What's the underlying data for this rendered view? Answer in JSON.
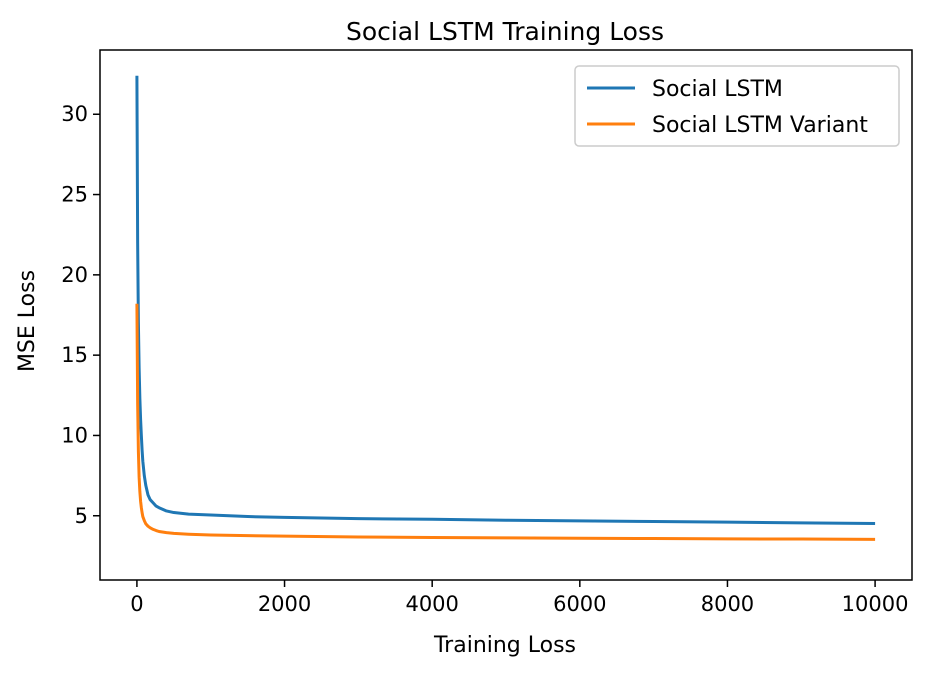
{
  "chart_data": {
    "type": "line",
    "title": "Social LSTM Training Loss",
    "xlabel": "Training Loss",
    "ylabel": "MSE Loss",
    "xlim": [
      -500,
      10500
    ],
    "ylim": [
      1.0,
      34.0
    ],
    "xticks": [
      0,
      2000,
      4000,
      6000,
      8000,
      10000
    ],
    "yticks": [
      5,
      10,
      15,
      20,
      25,
      30
    ],
    "grid": false,
    "legend_position": "top-right",
    "series": [
      {
        "name": "Social LSTM",
        "color": "#1f77b4",
        "x": [
          0,
          10,
          20,
          30,
          40,
          50,
          60,
          70,
          80,
          100,
          120,
          150,
          180,
          220,
          260,
          300,
          400,
          500,
          700,
          1000,
          1500,
          2000,
          3000,
          4000,
          5000,
          6000,
          7000,
          8000,
          9000,
          10000
        ],
        "y": [
          32.4,
          22.0,
          17.0,
          14.2,
          12.3,
          11.0,
          10.0,
          9.1,
          8.4,
          7.5,
          6.9,
          6.3,
          6.0,
          5.8,
          5.6,
          5.5,
          5.3,
          5.2,
          5.1,
          5.05,
          4.95,
          4.9,
          4.82,
          4.78,
          4.72,
          4.68,
          4.64,
          4.6,
          4.56,
          4.52
        ]
      },
      {
        "name": "Social LSTM Variant",
        "color": "#ff7f0e",
        "x": [
          0,
          10,
          20,
          30,
          40,
          50,
          60,
          70,
          80,
          100,
          120,
          150,
          180,
          220,
          260,
          300,
          400,
          500,
          700,
          1000,
          1500,
          2000,
          3000,
          4000,
          5000,
          6000,
          7000,
          8000,
          9000,
          10000
        ],
        "y": [
          18.2,
          12.0,
          9.0,
          7.4,
          6.5,
          5.9,
          5.5,
          5.2,
          4.95,
          4.7,
          4.5,
          4.35,
          4.25,
          4.15,
          4.08,
          4.02,
          3.95,
          3.9,
          3.85,
          3.8,
          3.76,
          3.73,
          3.68,
          3.65,
          3.62,
          3.6,
          3.58,
          3.56,
          3.55,
          3.53
        ]
      }
    ]
  }
}
